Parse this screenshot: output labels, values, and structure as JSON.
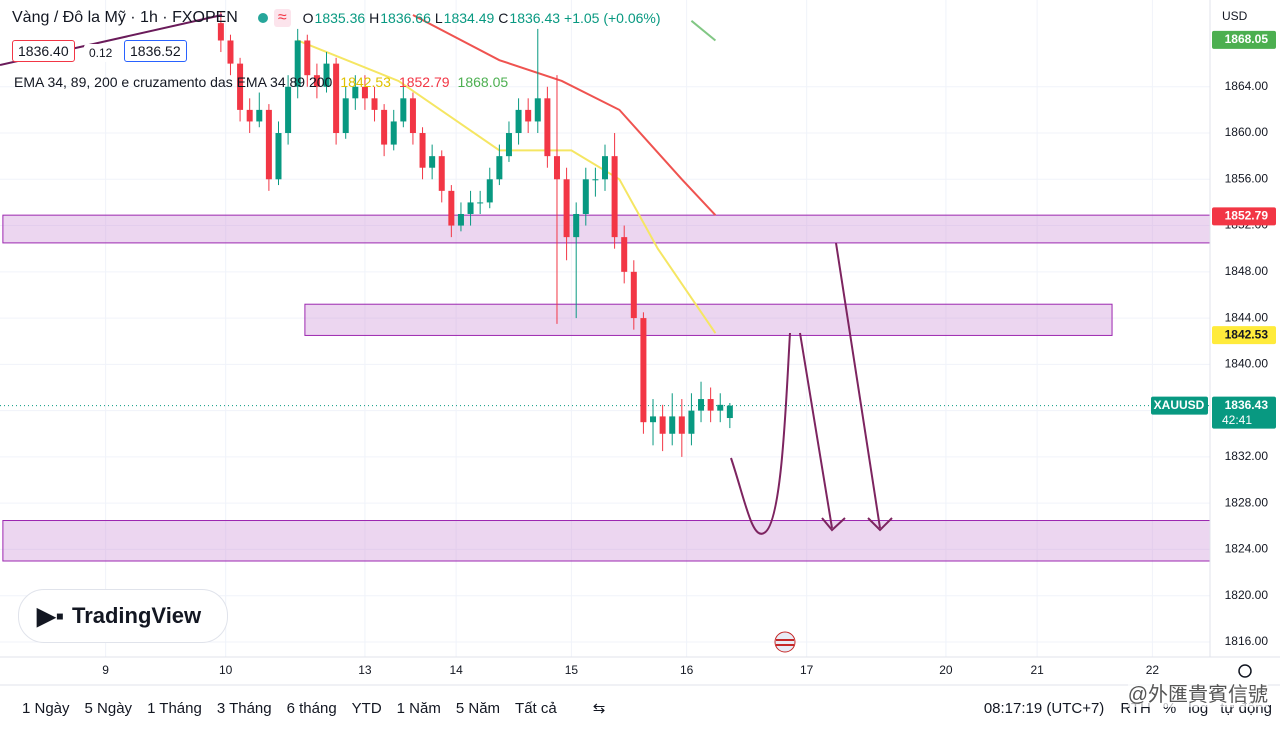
{
  "chart_data": {
    "type": "candlestick",
    "title": "Vàng / Đô la Mỹ · 1h · FXOPEN",
    "ohlc_labels": [
      "O",
      "H",
      "L",
      "C"
    ],
    "change": "+1.05 (+0.06%)",
    "quote": [
      "1836.40",
      "0.12",
      "1836.52"
    ],
    "indicator_label": "EMA 34, 89, 200 e cruzamento das EMA 34 89 200",
    "symbol": "XAUUSD",
    "countdown": "42:41",
    "currency": "USD",
    "up_color": "#089981",
    "down_color": "#f23645",
    "x": [
      45,
      47,
      49,
      51,
      53,
      55,
      57,
      59,
      61,
      63,
      65,
      67,
      69,
      71,
      73,
      75,
      77,
      79,
      81,
      83,
      85,
      87,
      89,
      91,
      93,
      95,
      97,
      99,
      101,
      103,
      105,
      107,
      109,
      111,
      113,
      115,
      117,
      119,
      121,
      123,
      125,
      127,
      129,
      131,
      133,
      135,
      137,
      139,
      141,
      143,
      145,
      147,
      149,
      151
    ],
    "open": [
      1869.5,
      1868,
      1866,
      1862,
      1861,
      1862,
      1856,
      1860,
      1864,
      1868,
      1865,
      1864,
      1866,
      1860,
      1863,
      1864,
      1863,
      1862,
      1859,
      1861,
      1863,
      1860,
      1857,
      1858,
      1855,
      1852,
      1853,
      1854,
      1854,
      1856,
      1858,
      1860,
      1862,
      1861,
      1863,
      1858,
      1856,
      1851,
      1853,
      1856,
      1856,
      1858,
      1851,
      1848,
      1844,
      1835,
      1835.5,
      1834,
      1835.5,
      1834,
      1836,
      1837,
      1836,
      1835.36
    ],
    "high": [
      1870.5,
      1868.5,
      1866.5,
      1863,
      1863.5,
      1862.5,
      1861,
      1865,
      1869,
      1868.5,
      1866,
      1867,
      1866.5,
      1864,
      1865,
      1865,
      1864,
      1862.5,
      1862,
      1864,
      1863.5,
      1860.5,
      1859,
      1858.5,
      1855.5,
      1854,
      1855,
      1855,
      1857,
      1859,
      1861,
      1863,
      1863,
      1869,
      1864,
      1865,
      1857,
      1854,
      1857,
      1857,
      1859,
      1860,
      1852,
      1849,
      1844.5,
      1837,
      1836.5,
      1837.5,
      1837,
      1837.5,
      1838.5,
      1838,
      1837.5,
      1836.66
    ],
    "low": [
      1867,
      1865,
      1861,
      1860,
      1860.5,
      1855,
      1855.5,
      1859,
      1863,
      1864,
      1863,
      1863.5,
      1859,
      1859.5,
      1862,
      1862,
      1861,
      1858,
      1858.5,
      1860.5,
      1859,
      1856,
      1856,
      1854,
      1851,
      1851.5,
      1852,
      1853,
      1853.5,
      1855.5,
      1857.5,
      1859,
      1860,
      1860,
      1857,
      1843.5,
      1849,
      1844,
      1852,
      1854.5,
      1855,
      1850,
      1847,
      1843,
      1834,
      1833,
      1832.5,
      1833,
      1832,
      1833,
      1835,
      1835,
      1835,
      1834.49
    ],
    "close": [
      1868,
      1866,
      1862,
      1861,
      1862,
      1856,
      1860,
      1864,
      1868,
      1865,
      1864,
      1866,
      1860,
      1863,
      1864,
      1863,
      1862,
      1859,
      1861,
      1863,
      1860,
      1857,
      1858,
      1855,
      1852,
      1853,
      1854,
      1854,
      1856,
      1858,
      1860,
      1862,
      1861,
      1863,
      1858,
      1856,
      1851,
      1853,
      1856,
      1856,
      1858,
      1851,
      1848,
      1844,
      1835,
      1835.5,
      1834,
      1835.5,
      1834,
      1836,
      1837,
      1836,
      1836.5,
      1836.43
    ],
    "series": [
      {
        "color": "#f5e663",
        "x": [
          61,
          82,
          103,
          118,
          128,
          136,
          148
        ],
        "values": [
          1868,
          1864.5,
          1858.5,
          1858.5,
          1856,
          1850,
          1842.7
        ],
        "last": 1842.53,
        "label_bg": "#ffeb3b",
        "label_fg": "#131722",
        "header_color": "#e0c200"
      },
      {
        "color": "#ef5350",
        "x": [
          85,
          103,
          116,
          128,
          141,
          148
        ],
        "values": [
          1870.2,
          1866.3,
          1864.5,
          1862,
          1856,
          1852.9
        ],
        "last": 1852.79,
        "label_bg": "#f23645",
        "label_fg": "#ffffff",
        "header_color": "#f23645"
      },
      {
        "color": "#81c784",
        "x": [
          143,
          148
        ],
        "values": [
          1869.7,
          1868
        ],
        "last": 1868.05,
        "label_bg": "#4caf50",
        "label_fg": "#ffffff",
        "header_color": "#4caf50"
      }
    ],
    "zones": [
      {
        "top": 1852.9,
        "bottom": 1850.5,
        "x0": -0.4,
        "x1": 251
      },
      {
        "top": 1845.2,
        "bottom": 1842.5,
        "x0": 62.5,
        "x1": 230.6
      },
      {
        "top": 1826.5,
        "bottom": 1823.0,
        "x0": -0.4,
        "x1": 251
      }
    ],
    "xlim": [
      -1,
      251
    ],
    "ylim": [
      1814.7,
      1871.5
    ],
    "yticks": [
      {
        "value": 1816,
        "label": "1816.00"
      },
      {
        "value": 1820,
        "label": "1820.00"
      },
      {
        "value": 1824,
        "label": "1824.00"
      },
      {
        "value": 1828,
        "label": "1828.00"
      },
      {
        "value": 1832,
        "label": "1832.00"
      },
      {
        "value": 1836,
        "label": "1836.00"
      },
      {
        "value": 1840,
        "label": "1840.00"
      },
      {
        "value": 1844,
        "label": "1844.00"
      },
      {
        "value": 1848,
        "label": "1848.00"
      },
      {
        "value": 1852,
        "label": "1852.00"
      },
      {
        "value": 1856,
        "label": "1856.00"
      },
      {
        "value": 1860,
        "label": "1860.00"
      },
      {
        "value": 1864,
        "label": "1864.00"
      }
    ],
    "xticks": [
      {
        "value": 21,
        "label": "9"
      },
      {
        "value": 46,
        "label": "10"
      },
      {
        "value": 75,
        "label": "13"
      },
      {
        "value": 94,
        "label": "14"
      },
      {
        "value": 118,
        "label": "15"
      },
      {
        "value": 142,
        "label": "16"
      },
      {
        "value": 167,
        "label": "17"
      },
      {
        "value": 196,
        "label": "20"
      },
      {
        "value": 215,
        "label": "21"
      },
      {
        "value": 239,
        "label": "22"
      }
    ],
    "grid": true,
    "watermark": "TradingView",
    "ranges": [
      "1 Ngày",
      "5 Ngày",
      "1 Tháng",
      "3 Tháng",
      "6 tháng",
      "YTD",
      "1 Năm",
      "5 Năm",
      "Tất cả"
    ],
    "clock": "08:17:19 (UTC+7)",
    "options": [
      "RTH",
      "%",
      "log",
      "tự động"
    ],
    "credit": "@外匯貴賓信號"
  }
}
